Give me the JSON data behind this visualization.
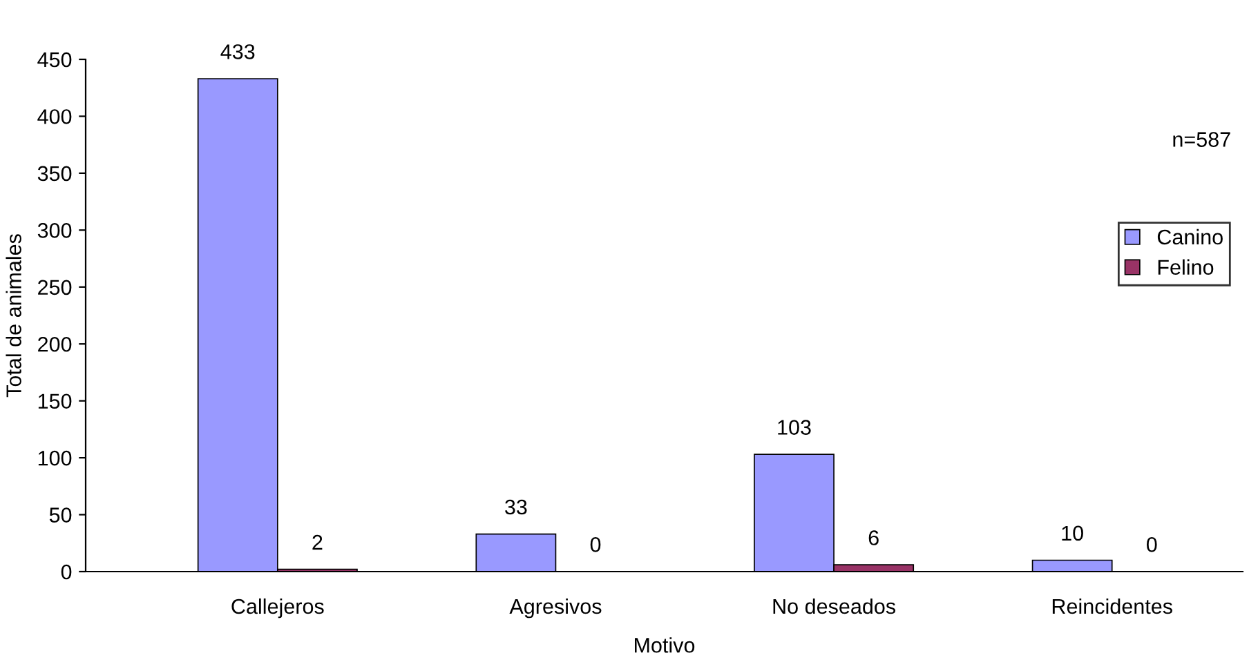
{
  "chart_data": {
    "type": "bar",
    "xlabel": "Motivo",
    "ylabel": "Total de animales",
    "categories": [
      "Callejeros",
      "Agresivos",
      "No deseados",
      "Reincidentes"
    ],
    "series": [
      {
        "name": "Canino",
        "color": "#9999ff",
        "values": [
          433,
          33,
          103,
          10
        ]
      },
      {
        "name": "Felino",
        "color": "#993366",
        "values": [
          2,
          0,
          6,
          0
        ]
      }
    ],
    "ylim": [
      0,
      450
    ],
    "yticks": [
      0,
      50,
      100,
      150,
      200,
      250,
      300,
      350,
      400,
      450
    ],
    "data_labels": true,
    "legend": "right",
    "annotations": [
      "n=587"
    ]
  }
}
